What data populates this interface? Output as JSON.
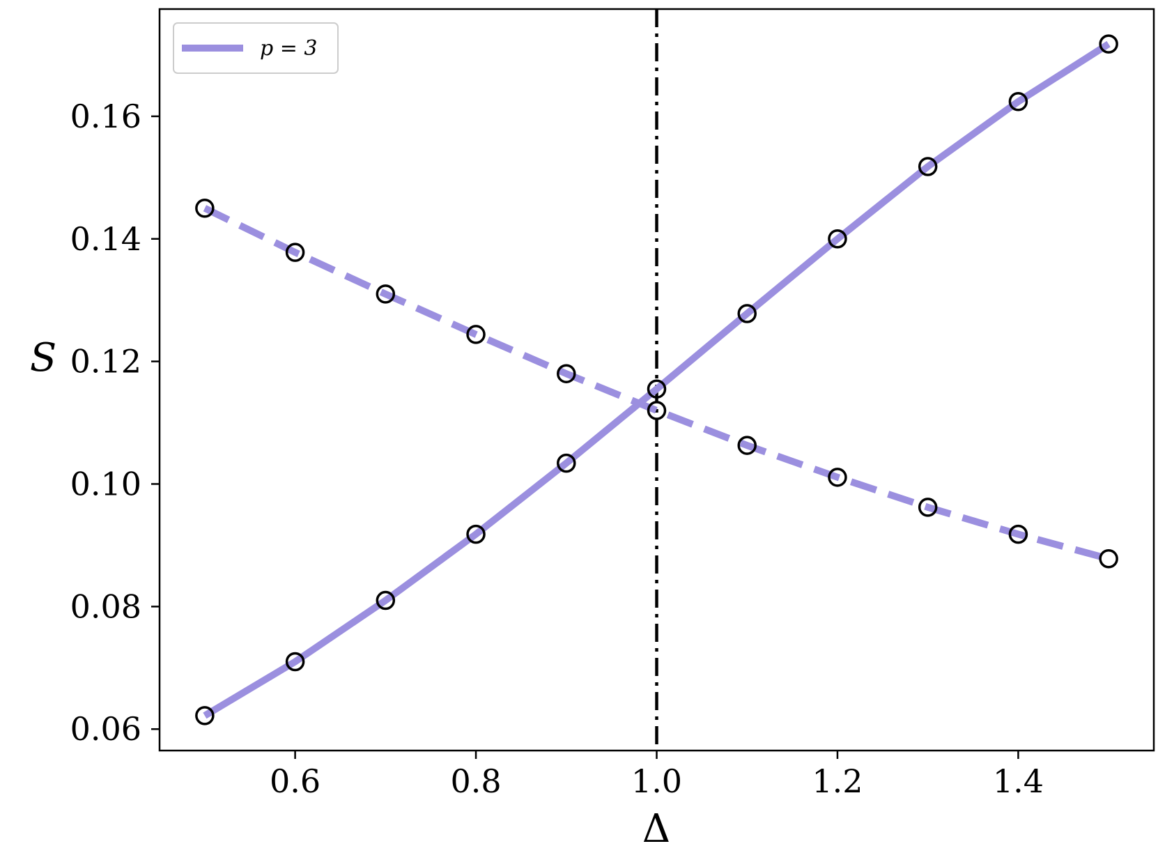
{
  "chart_data": {
    "type": "line",
    "xlabel": "Δ",
    "ylabel": "S",
    "xlim": [
      0.45,
      1.55
    ],
    "ylim": [
      0.0565,
      0.1775
    ],
    "xticks": [
      0.6,
      0.8,
      1.0,
      1.2,
      1.4
    ],
    "xtick_labels": [
      "0.6",
      "0.8",
      "1.0",
      "1.2",
      "1.4"
    ],
    "yticks": [
      0.06,
      0.08,
      0.1,
      0.12,
      0.14,
      0.16
    ],
    "ytick_labels": [
      "0.06",
      "0.08",
      "0.10",
      "0.12",
      "0.14",
      "0.16"
    ],
    "grid": false,
    "legend_position": "top-left",
    "vline": {
      "x": 1.0,
      "style": "dash-dot",
      "color": "#000000"
    },
    "x": [
      0.5,
      0.6,
      0.7,
      0.8,
      0.9,
      1.0,
      1.1,
      1.2,
      1.3,
      1.4,
      1.5
    ],
    "series": [
      {
        "name": "p = 3",
        "style": "solid",
        "color": "#9b8fdf",
        "markers": "open-circle",
        "values": [
          0.0622,
          0.071,
          0.081,
          0.0918,
          0.1034,
          0.1155,
          0.1278,
          0.14,
          0.1518,
          0.1624,
          0.1718
        ]
      },
      {
        "style": "dashed",
        "color": "#9b8fdf",
        "markers": "open-circle",
        "values": [
          0.145,
          0.1378,
          0.131,
          0.1244,
          0.118,
          0.112,
          0.1063,
          0.1011,
          0.0962,
          0.0918,
          0.0878
        ]
      }
    ]
  }
}
